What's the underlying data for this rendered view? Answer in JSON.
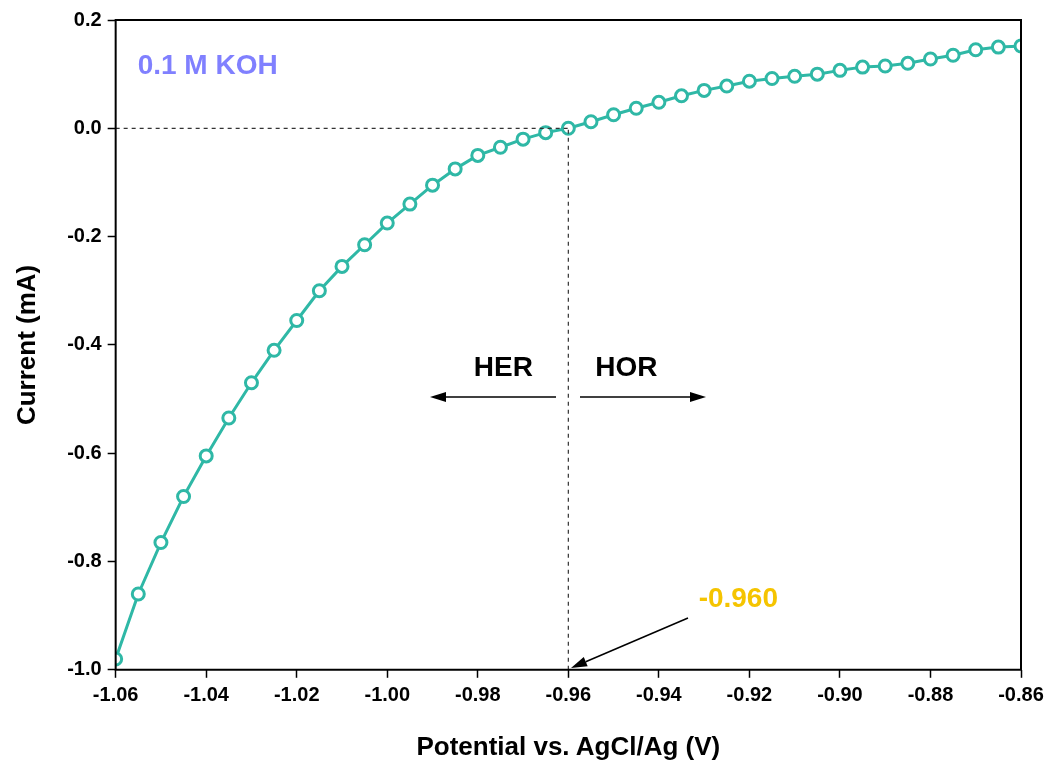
{
  "chart_data": {
    "type": "line",
    "xlabel": "Potential vs. AgCl/Ag (V)",
    "ylabel": "Current (mA)",
    "x": [
      -1.06,
      -1.055,
      -1.05,
      -1.045,
      -1.04,
      -1.035,
      -1.03,
      -1.025,
      -1.02,
      -1.015,
      -1.01,
      -1.005,
      -1.0,
      -0.995,
      -0.99,
      -0.985,
      -0.98,
      -0.975,
      -0.97,
      -0.965,
      -0.96,
      -0.955,
      -0.95,
      -0.945,
      -0.94,
      -0.935,
      -0.93,
      -0.925,
      -0.92,
      -0.915,
      -0.91,
      -0.905,
      -0.9,
      -0.895,
      -0.89,
      -0.885,
      -0.88,
      -0.875,
      -0.87,
      -0.865,
      -0.86
    ],
    "series": [
      {
        "color": "#2fb8a6",
        "values": [
          -0.98,
          -0.86,
          -0.765,
          -0.68,
          -0.605,
          -0.535,
          -0.47,
          -0.41,
          -0.355,
          -0.3,
          -0.255,
          -0.215,
          -0.175,
          -0.14,
          -0.105,
          -0.075,
          -0.05,
          -0.035,
          -0.02,
          -0.008,
          0.0,
          0.012,
          0.025,
          0.037,
          0.048,
          0.06,
          0.07,
          0.078,
          0.087,
          0.092,
          0.096,
          0.1,
          0.107,
          0.113,
          0.115,
          0.12,
          0.128,
          0.135,
          0.145,
          0.15,
          0.152
        ]
      }
    ],
    "xlim": [
      -1.06,
      -0.86
    ],
    "xticks": [
      {
        "value": -1.06,
        "label": "-1.06"
      },
      {
        "value": -1.04,
        "label": "-1.04"
      },
      {
        "value": -1.02,
        "label": "-1.02"
      },
      {
        "value": -1.0,
        "label": "-1.00"
      },
      {
        "value": -0.98,
        "label": "-0.98"
      },
      {
        "value": -0.96,
        "label": "-0.96"
      },
      {
        "value": -0.94,
        "label": "-0.94"
      },
      {
        "value": -0.92,
        "label": "-0.92"
      },
      {
        "value": -0.9,
        "label": "-0.90"
      },
      {
        "value": -0.88,
        "label": "-0.88"
      },
      {
        "value": -0.86,
        "label": "-0.86"
      }
    ],
    "ylim": [
      -1.0,
      0.2
    ],
    "yticks": [
      {
        "value": -1.0,
        "label": "-1.0"
      },
      {
        "value": -0.8,
        "label": "-0.8"
      },
      {
        "value": -0.6,
        "label": "-0.6"
      },
      {
        "value": -0.4,
        "label": "-0.4"
      },
      {
        "value": -0.2,
        "label": "-0.2"
      },
      {
        "value": 0,
        "label": "0.0"
      },
      {
        "value": 0.2,
        "label": "0.2"
      }
    ],
    "ref_lines": [
      {
        "axis": "y",
        "value": 0,
        "color": "#333333",
        "line_style": "dashed"
      },
      {
        "axis": "x",
        "value": -0.96,
        "color": "#333333",
        "line_style": "dashed"
      }
    ],
    "annotations": [
      "0.1 M KOH",
      "HER",
      "HOR",
      "-0.960"
    ],
    "marker": "circle",
    "grid": false,
    "legend": false
  }
}
